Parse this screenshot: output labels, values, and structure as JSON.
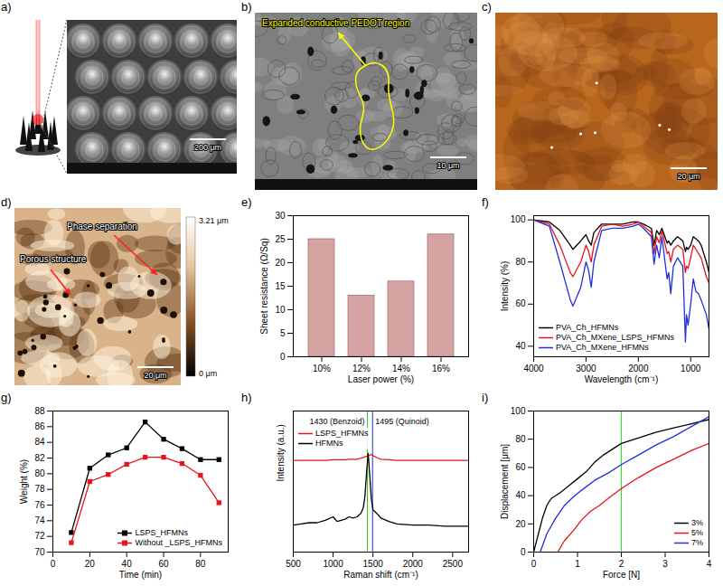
{
  "images": [
    {
      "panel": "a)",
      "scale_bar": "200 μm"
    },
    {
      "panel": "b)",
      "scale_bar": "10 μm",
      "annotation": "Expanded conductive PEDOT region"
    },
    {
      "panel": "c)",
      "scale_bar": "20 μm"
    },
    {
      "panel": "d)",
      "scale_bar": "20 μm",
      "annotations": [
        "Phase separation",
        "Porous structure"
      ],
      "color_bar_labels": [
        "3.21 μm",
        "0 μm"
      ]
    }
  ],
  "chart_data": [
    {
      "panel": "e)",
      "type": "bar",
      "x_label": "Laser power (%)",
      "y_label": "Sheet resistance (Ω/Sq)",
      "categories": [
        "10%",
        "12%",
        "14%",
        "16%"
      ],
      "values": [
        25,
        13,
        16,
        26
      ],
      "color": "#d6a3a3",
      "ylim": [
        0,
        30
      ],
      "yticks": [
        0,
        5,
        10,
        15,
        20,
        25,
        30
      ],
      "grid": false
    },
    {
      "panel": "f)",
      "type": "line",
      "x_label": "Wavelength (cm⁻¹)",
      "y_label": "Intensity (%)",
      "x": [
        4000,
        3700,
        3500,
        3300,
        3250,
        3100,
        3000,
        2950,
        2900,
        2850,
        2700,
        2500,
        2300,
        2100,
        2000,
        1900,
        1750,
        1700,
        1650,
        1600,
        1550,
        1450,
        1420,
        1380,
        1330,
        1250,
        1150,
        1100,
        1080,
        1050,
        1000,
        950,
        900,
        850,
        800,
        700,
        650
      ],
      "series": [
        {
          "name": "PVA_Ch_HFMNs",
          "color": "#000000",
          "values": [
            100,
            99,
            95,
            88,
            86,
            90,
            93,
            90,
            88,
            94,
            98,
            98,
            98,
            99,
            99,
            98,
            96,
            88,
            95,
            93,
            96,
            89,
            90,
            88,
            90,
            92,
            90,
            85,
            87,
            86,
            88,
            92,
            91,
            90,
            88,
            80,
            75
          ]
        },
        {
          "name": "PVA_Ch_MXene_LSPS_HFMNs",
          "color": "#e8141a",
          "values": [
            100,
            98,
            88,
            75,
            73,
            80,
            88,
            85,
            80,
            88,
            97,
            98,
            97,
            98,
            99,
            97,
            94,
            84,
            92,
            89,
            95,
            84,
            85,
            80,
            86,
            88,
            86,
            75,
            78,
            77,
            82,
            88,
            86,
            84,
            82,
            73,
            70
          ]
        },
        {
          "name": "PVA_Ch_MXene_HFMNs",
          "color": "#1f2fe0",
          "values": [
            100,
            97,
            80,
            62,
            59,
            68,
            80,
            76,
            68,
            80,
            95,
            96,
            96,
            97,
            98,
            96,
            92,
            79,
            88,
            82,
            92,
            72,
            75,
            65,
            78,
            82,
            78,
            42,
            55,
            50,
            60,
            72,
            66,
            65,
            62,
            55,
            48
          ]
        }
      ],
      "xlim": [
        4000,
        650
      ],
      "xticks": [
        4000,
        3000,
        2000,
        1000
      ],
      "ylim": [
        35,
        102
      ],
      "yticks": [
        40,
        60,
        80,
        100
      ],
      "legend": "lower left",
      "grid": false
    },
    {
      "panel": "g)",
      "type": "line",
      "x_label": "Time (min)",
      "y_label": "Weight (%)",
      "x": [
        10,
        20,
        30,
        40,
        50,
        60,
        70,
        80,
        90
      ],
      "series": [
        {
          "name": "LSPS_HFMNs",
          "color": "#000000",
          "marker": "square",
          "values": [
            72.5,
            80.7,
            82.4,
            83.3,
            86.6,
            84.4,
            83.2,
            81.8,
            81.8
          ]
        },
        {
          "name": "Without _LSPS_HFMNs",
          "color": "#e8141a",
          "marker": "square",
          "values": [
            71.2,
            79.0,
            79.9,
            81.2,
            82.1,
            82.1,
            81.3,
            79.8,
            76.3
          ]
        }
      ],
      "xlim": [
        0,
        95
      ],
      "xticks": [
        0,
        20,
        40,
        60,
        80
      ],
      "ylim": [
        70,
        88
      ],
      "yticks": [
        70,
        72,
        74,
        76,
        78,
        80,
        82,
        84,
        86,
        88
      ],
      "legend": "lower right",
      "grid": false
    },
    {
      "panel": "h)",
      "type": "line",
      "x_label": "Raman shift (cm⁻¹)",
      "y_label": "Intensity (a.u.)",
      "x": [
        500,
        600,
        700,
        800,
        900,
        1000,
        1050,
        1100,
        1150,
        1200,
        1250,
        1300,
        1350,
        1380,
        1400,
        1420,
        1440,
        1460,
        1480,
        1500,
        1530,
        1560,
        1600,
        1700,
        1800,
        2000,
        2200,
        2400,
        2600,
        2700
      ],
      "series": [
        {
          "name": "LSPS_HFMNs",
          "color": "#e8141a",
          "values": [
            7.8,
            7.8,
            7.8,
            7.8,
            7.8,
            7.85,
            7.85,
            7.85,
            7.85,
            7.9,
            7.9,
            7.9,
            8.0,
            8.05,
            8.1,
            8.15,
            8.2,
            8.25,
            8.3,
            8.2,
            8.1,
            8.0,
            7.9,
            7.85,
            7.8,
            7.8,
            7.8,
            7.8,
            7.8,
            7.8
          ]
        },
        {
          "name": "HFMNs",
          "color": "#000000",
          "values": [
            2.3,
            2.4,
            2.5,
            2.5,
            2.7,
            3.0,
            2.6,
            2.7,
            2.8,
            3.0,
            2.9,
            3.0,
            3.3,
            3.8,
            4.8,
            6.8,
            8.4,
            6.5,
            4.5,
            3.6,
            3.4,
            3.2,
            2.9,
            2.6,
            2.4,
            2.3,
            2.3,
            2.2,
            2.2,
            2.2
          ]
        }
      ],
      "peaks": [
        {
          "x": 1430,
          "label": "1430 (Benzoid)",
          "color": "#22cc22"
        },
        {
          "x": 1495,
          "label": "1495 (Quinoid)",
          "color": "#1f2fe0"
        }
      ],
      "xlim": [
        500,
        2700
      ],
      "xticks": [
        500,
        1000,
        1500,
        2000,
        2500
      ],
      "ylim": [
        0,
        12
      ],
      "tick_labels": "x",
      "legend": "upper left",
      "grid": false
    },
    {
      "panel": "i)",
      "type": "line",
      "x_label": "Force [N]",
      "y_label": "Displacement [μm]",
      "series": [
        {
          "name": "3%",
          "color": "#000000",
          "x": [
            0,
            0.1,
            0.2,
            0.3,
            0.4,
            0.6,
            0.8,
            1.0,
            1.2,
            1.4,
            1.6,
            1.8,
            2.0,
            2.4,
            2.8,
            3.2,
            3.6,
            4.0
          ],
          "values": [
            0,
            12,
            24,
            33,
            38,
            42,
            47,
            52,
            57,
            64,
            69,
            73,
            77,
            81,
            85,
            88,
            91,
            94
          ]
        },
        {
          "name": "5%",
          "color": "#e8141a",
          "x": [
            0.55,
            0.7,
            0.9,
            1.1,
            1.3,
            1.5,
            1.7,
            2.0,
            2.4,
            2.8,
            3.2,
            3.6,
            4.0
          ],
          "values": [
            0,
            8,
            15,
            23,
            29,
            33,
            38,
            45,
            53,
            60,
            66,
            72,
            77
          ]
        },
        {
          "name": "7%",
          "color": "#1f2fe0",
          "x": [
            0.15,
            0.3,
            0.5,
            0.7,
            0.9,
            1.1,
            1.4,
            1.7,
            2.0,
            2.4,
            2.8,
            3.2,
            3.6,
            4.0
          ],
          "values": [
            0,
            13,
            24,
            33,
            39,
            44,
            51,
            56,
            62,
            69,
            76,
            82,
            89,
            96
          ]
        }
      ],
      "reference_lines": [
        {
          "x": 2,
          "color": "#33dd33"
        }
      ],
      "xlim": [
        0,
        4
      ],
      "xticks": [
        0,
        1,
        2,
        3,
        4
      ],
      "ylim": [
        0,
        100
      ],
      "yticks": [
        0,
        20,
        40,
        60,
        80,
        100
      ],
      "legend": "lower right",
      "grid": false
    }
  ]
}
